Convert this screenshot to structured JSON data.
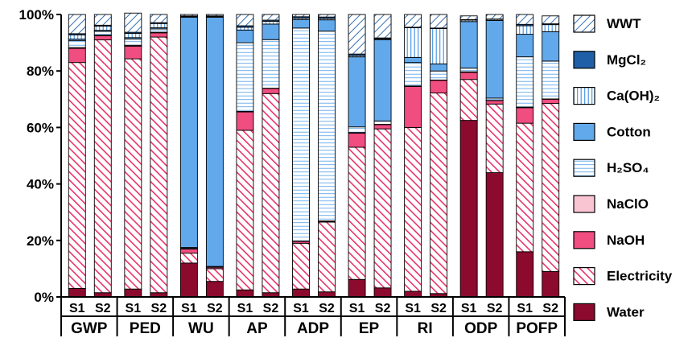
{
  "chart_data": {
    "type": "bar",
    "stacked": true,
    "title": "",
    "xlabel": "",
    "ylabel": "",
    "ylim": [
      0,
      100
    ],
    "yticks": [
      "0%",
      "20%",
      "40%",
      "60%",
      "80%",
      "100%"
    ],
    "legend_position": "right",
    "categories": [
      "GWP",
      "PED",
      "WU",
      "AP",
      "ADP",
      "EP",
      "RI",
      "ODP",
      "POFP"
    ],
    "scenarios": [
      "S1",
      "S2"
    ],
    "series": [
      {
        "key": "water",
        "name": "Water",
        "color": "#8b0a2e",
        "values": [
          [
            3,
            1.5
          ],
          [
            2.8,
            1.5
          ],
          [
            12,
            5.5
          ],
          [
            2.5,
            1.5
          ],
          [
            2.8,
            1.8
          ],
          [
            6.2,
            3.2
          ],
          [
            2,
            1.2
          ],
          [
            62.5,
            44
          ],
          [
            16,
            9
          ]
        ]
      },
      {
        "key": "electricity",
        "name": "Electricity",
        "color": "#e8336b",
        "values": [
          [
            80,
            89.5
          ],
          [
            81.5,
            90.5
          ],
          [
            3.5,
            4.5
          ],
          [
            56.5,
            70.5
          ],
          [
            16.2,
            24.7
          ],
          [
            46.8,
            56.3
          ],
          [
            58,
            71
          ],
          [
            14.5,
            24.3
          ],
          [
            45.5,
            59.5
          ]
        ]
      },
      {
        "key": "naoh",
        "name": "NaOH",
        "color": "#f04d80",
        "values": [
          [
            5,
            1.5
          ],
          [
            4.5,
            1.5
          ],
          [
            1.5,
            0.5
          ],
          [
            6.5,
            1.8
          ],
          [
            0.7,
            0.3
          ],
          [
            5,
            1.5
          ],
          [
            14.5,
            4.5
          ],
          [
            2.5,
            1.2
          ],
          [
            5.5,
            1.5
          ]
        ]
      },
      {
        "key": "naclo",
        "name": "NaClO",
        "color": "#f9c5d3",
        "values": [
          [
            0.3,
            0.2
          ],
          [
            0.3,
            0.2
          ],
          [
            0.2,
            0.1
          ],
          [
            0.2,
            0.1
          ],
          [
            0.1,
            0.1
          ],
          [
            0.2,
            0.1
          ],
          [
            0.2,
            0.1
          ],
          [
            0.2,
            0.1
          ],
          [
            0.2,
            0.1
          ]
        ]
      },
      {
        "key": "h2so4",
        "name": "H₂SO₄",
        "color": "#ffffff",
        "values": [
          [
            2.5,
            1.3
          ],
          [
            2.2,
            1.2
          ],
          [
            0.3,
            0.2
          ],
          [
            24.3,
            17.2
          ],
          [
            75.4,
            67.2
          ],
          [
            2,
            1.2
          ],
          [
            8.3,
            3.2
          ],
          [
            1.3,
            0.8
          ],
          [
            17.8,
            13.4
          ]
        ]
      },
      {
        "key": "cotton",
        "name": "Cotton",
        "color": "#62a9ec",
        "values": [
          [
            0.5,
            0.4
          ],
          [
            0.5,
            0.4
          ],
          [
            81.5,
            88.2
          ],
          [
            4.5,
            5.5
          ],
          [
            3.0,
            4.0
          ],
          [
            24.8,
            28.8
          ],
          [
            1.8,
            2.5
          ],
          [
            16.5,
            27.5
          ],
          [
            8,
            10.4
          ]
        ]
      },
      {
        "key": "caoh2",
        "name": "Ca(OH)₂",
        "color": "#ffffff",
        "values": [
          [
            1.5,
            1.5
          ],
          [
            1.5,
            1.5
          ],
          [
            0.3,
            0.3
          ],
          [
            1.0,
            1.0
          ],
          [
            0.5,
            0.5
          ],
          [
            0.5,
            0.3
          ],
          [
            10.5,
            12.5
          ],
          [
            0.5,
            0.4
          ],
          [
            3.0,
            2.5
          ]
        ]
      },
      {
        "key": "mgcl2",
        "name": "MgCl₂",
        "color": "#1f5fa8",
        "values": [
          [
            0.4,
            0.3
          ],
          [
            0.4,
            0.3
          ],
          [
            0.2,
            0.2
          ],
          [
            0.5,
            0.4
          ],
          [
            0.5,
            0.5
          ],
          [
            0.5,
            0.3
          ],
          [
            0.2,
            0.2
          ],
          [
            0.2,
            0.1
          ],
          [
            0.5,
            0.3
          ]
        ]
      },
      {
        "key": "wwt",
        "name": "WWT",
        "color": "#1f5fa8",
        "values": [
          [
            6.8,
            3.8
          ],
          [
            6.8,
            2.9
          ],
          [
            0.5,
            0.5
          ],
          [
            4,
            2
          ],
          [
            0.8,
            0.9
          ],
          [
            14,
            8.3
          ],
          [
            4.5,
            4.8
          ],
          [
            1.3,
            1.6
          ],
          [
            3.5,
            2.8
          ]
        ]
      }
    ],
    "legend": [
      {
        "key": "wwt",
        "name": "WWT"
      },
      {
        "key": "mgcl2",
        "name": "MgCl₂"
      },
      {
        "key": "caoh2",
        "name": "Ca(OH)₂"
      },
      {
        "key": "cotton",
        "name": "Cotton"
      },
      {
        "key": "h2so4",
        "name": "H₂SO₄"
      },
      {
        "key": "naclo",
        "name": "NaClO"
      },
      {
        "key": "naoh",
        "name": "NaOH"
      },
      {
        "key": "electricity",
        "name": "Electricity"
      },
      {
        "key": "water",
        "name": "Water"
      }
    ]
  }
}
